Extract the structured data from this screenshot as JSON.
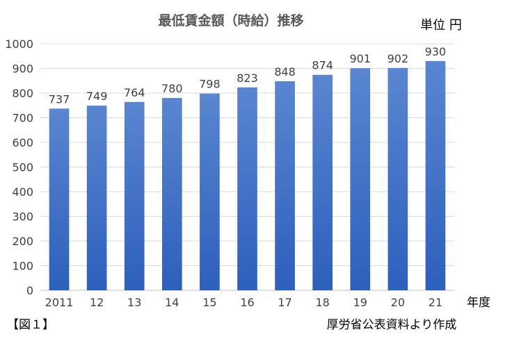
{
  "chart_data": {
    "type": "bar",
    "title": "最低賃金額（時給）推移",
    "unit_label": "単位 円",
    "xlabel": "年度",
    "ylabel": "",
    "categories": [
      "2011",
      "12",
      "13",
      "14",
      "15",
      "16",
      "17",
      "18",
      "19",
      "20",
      "21"
    ],
    "values": [
      737,
      749,
      764,
      780,
      798,
      823,
      848,
      874,
      901,
      902,
      930
    ],
    "yticks": [
      0,
      100,
      200,
      300,
      400,
      500,
      600,
      700,
      800,
      900,
      1000
    ],
    "ylim": [
      0,
      1000
    ],
    "grid": true,
    "data_labels": true,
    "bar_color_top": "#5a86d0",
    "bar_color_bottom": "#2d5fbd"
  },
  "figure_label": "【図１】",
  "source_note": "厚労省公表資料より作成"
}
